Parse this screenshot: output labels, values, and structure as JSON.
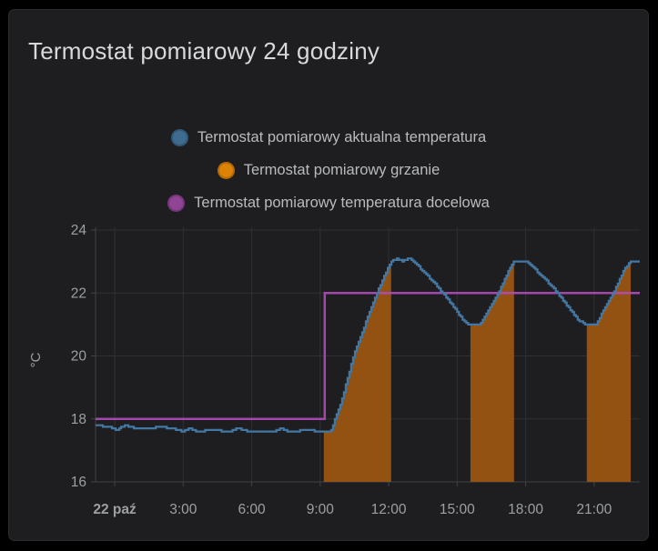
{
  "panel": {
    "title": "Termostat pomiarowy 24 godziny"
  },
  "legend": {
    "items": [
      {
        "label": "Termostat pomiarowy aktualna temperatura",
        "color": "#3e6c90"
      },
      {
        "label": "Termostat pomiarowy grzanie",
        "color": "#dc8206"
      },
      {
        "label": "Termostat pomiarowy temperatura docelowa",
        "color": "#8f4496"
      }
    ]
  },
  "colors": {
    "page_bg": "#000000",
    "panel_bg": "#1e1e20",
    "panel_border": "#2c2c30",
    "grid": "#303034",
    "axis": "#404347",
    "tick_text": "#9da0a3",
    "title_text": "#d8d9da",
    "legend_text": "#b9bbbe",
    "temp_line": "#4478a4",
    "target_line": "#b04cba",
    "heat_fill": "#9a5412"
  },
  "chart_data": {
    "type": "line",
    "title": "Termostat pomiarowy 24 godziny",
    "xlabel": "",
    "ylabel": "°C",
    "grid": true,
    "legend_position": "top-center",
    "xlim_hours": [
      -0.84,
      23.0
    ],
    "ylim": [
      16,
      24
    ],
    "y_ticks": [
      16,
      18,
      20,
      22,
      24
    ],
    "x_ticks": [
      {
        "hour": 0,
        "label": "22 paź",
        "bold": true
      },
      {
        "hour": 3,
        "label": "3:00"
      },
      {
        "hour": 6,
        "label": "6:00"
      },
      {
        "hour": 9,
        "label": "9:00"
      },
      {
        "hour": 12,
        "label": "12:00"
      },
      {
        "hour": 15,
        "label": "15:00"
      },
      {
        "hour": 18,
        "label": "18:00"
      },
      {
        "hour": 21,
        "label": "21:00"
      }
    ],
    "series": [
      {
        "name": "Termostat pomiarowy aktualna temperatura",
        "type": "step-line",
        "color": "#4478a4",
        "unit": "°C",
        "points": [
          [
            -0.84,
            17.8
          ],
          [
            -0.3,
            17.75
          ],
          [
            0.1,
            17.65
          ],
          [
            0.45,
            17.8
          ],
          [
            0.9,
            17.7
          ],
          [
            1.6,
            17.7
          ],
          [
            2.0,
            17.75
          ],
          [
            2.5,
            17.7
          ],
          [
            3.0,
            17.6
          ],
          [
            3.3,
            17.7
          ],
          [
            3.6,
            17.6
          ],
          [
            4.3,
            17.65
          ],
          [
            5.0,
            17.6
          ],
          [
            5.4,
            17.7
          ],
          [
            5.9,
            17.6
          ],
          [
            7.0,
            17.6
          ],
          [
            7.3,
            17.7
          ],
          [
            7.6,
            17.6
          ],
          [
            8.5,
            17.65
          ],
          [
            8.9,
            17.6
          ],
          [
            9.45,
            17.6
          ],
          [
            9.9,
            18.5
          ],
          [
            10.5,
            20.1
          ],
          [
            11.5,
            22.05
          ],
          [
            12.1,
            23.0
          ],
          [
            12.35,
            23.1
          ],
          [
            12.6,
            23.0
          ],
          [
            12.9,
            23.1
          ],
          [
            13.1,
            23.0
          ],
          [
            13.9,
            22.4
          ],
          [
            14.6,
            21.8
          ],
          [
            15.35,
            21.05
          ],
          [
            15.5,
            21.0
          ],
          [
            16.0,
            21.0
          ],
          [
            16.8,
            22.0
          ],
          [
            17.45,
            23.0
          ],
          [
            18.05,
            23.0
          ],
          [
            18.7,
            22.55
          ],
          [
            19.4,
            22.0
          ],
          [
            20.3,
            21.15
          ],
          [
            20.65,
            21.0
          ],
          [
            21.1,
            21.0
          ],
          [
            21.5,
            21.6
          ],
          [
            21.9,
            22.1
          ],
          [
            22.35,
            22.8
          ],
          [
            22.6,
            23.0
          ],
          [
            23.0,
            23.0
          ]
        ]
      },
      {
        "name": "Termostat pomiarowy temperatura docelowa",
        "type": "step-line",
        "color": "#b04cba",
        "unit": "°C",
        "points": [
          [
            -0.84,
            18.0
          ],
          [
            9.2,
            18.0
          ],
          [
            9.2,
            22.0
          ],
          [
            23.0,
            22.0
          ]
        ]
      },
      {
        "name": "Termostat pomiarowy grzanie",
        "type": "area-under-temperature",
        "color": "#9a5412",
        "on_regions_hours": [
          [
            9.16,
            12.11
          ],
          [
            15.58,
            17.49
          ],
          [
            20.68,
            22.6
          ]
        ]
      }
    ]
  }
}
